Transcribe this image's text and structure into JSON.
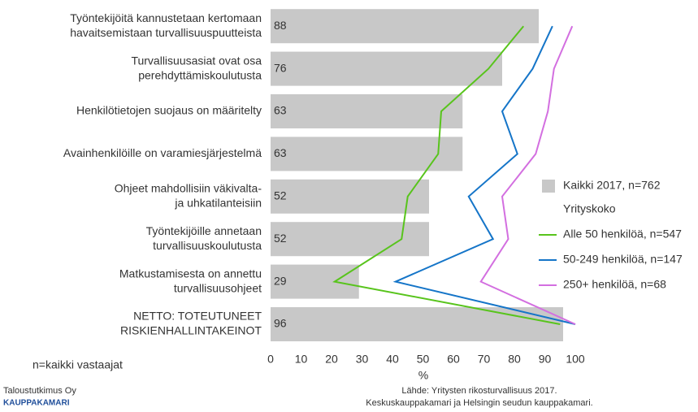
{
  "chart_data": {
    "type": "bar",
    "categories": [
      [
        "Työntekijöitä kannustetaan kertomaan",
        "havaitsemistaan turvallisuuspuutteista"
      ],
      [
        "Turvallisuusasiat ovat osa",
        "perehdyttämiskoulutusta"
      ],
      [
        "Henkilötietojen suojaus on määritelty"
      ],
      [
        "Avainhenkilöille on varamiesjärjestelmä"
      ],
      [
        "Ohjeet mahdollisiin väkivalta-",
        "ja uhkatilanteisiin"
      ],
      [
        "Työntekijöille annetaan",
        "turvallisuuskoulutusta"
      ],
      [
        "Matkustamisesta on annettu",
        "turvallisuusohjeet"
      ],
      [
        "NETTO: TOTEUTUNEET",
        "RISKIENHALLINTAKEINOT"
      ]
    ],
    "series": [
      {
        "name": "Kaikki 2017, n=762",
        "type": "bar",
        "color": "#c8c8c8",
        "values": [
          88,
          76,
          63,
          63,
          52,
          52,
          29,
          96
        ]
      },
      {
        "name": "Alle 50 henkilöä, n=547",
        "type": "line",
        "color": "#58c41c",
        "values": [
          83,
          71.5,
          56,
          55,
          45,
          43,
          21,
          95
        ]
      },
      {
        "name": "50-249 henkilöä, n=147",
        "type": "line",
        "color": "#1575c8",
        "values": [
          92.5,
          86,
          76,
          81,
          65,
          73,
          41,
          100
        ]
      },
      {
        "name": "250+ henkilöä, n=68",
        "type": "line",
        "color": "#d36fe0",
        "values": [
          99,
          93,
          91,
          87,
          76,
          78,
          69,
          100
        ]
      }
    ],
    "legend_title": "Yrityskoko",
    "xlabel": "%",
    "xlim": [
      0,
      100
    ],
    "xticks": [
      0,
      10,
      20,
      30,
      40,
      50,
      60,
      70,
      80,
      90,
      100
    ],
    "note": "n=kaikki vastaajat",
    "source": [
      "Lähde: Yritysten rikosturvallisuus 2017.",
      "Keskuskauppakamari ja Helsingin seudun kauppakamari."
    ],
    "logo": [
      "Taloustutkimus Oy",
      "KAUPPAKAMARI"
    ]
  }
}
